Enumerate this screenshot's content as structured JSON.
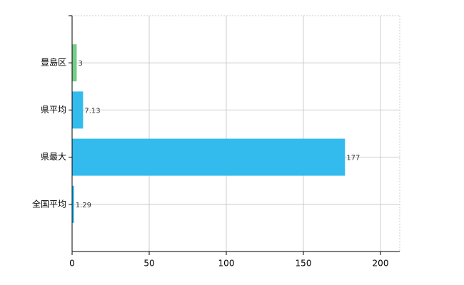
{
  "chart_data": {
    "type": "barh",
    "categories": [
      "豊島区",
      "県平均",
      "県最大",
      "全国平均"
    ],
    "values": [
      3,
      7.13,
      177,
      1.29
    ],
    "colors": [
      "#77cc88",
      "#33bbee",
      "#33bbee",
      "#33bbee"
    ],
    "xlim": [
      0,
      212.5
    ],
    "xticks": [
      0,
      50,
      100,
      150,
      200
    ],
    "grid": true
  }
}
